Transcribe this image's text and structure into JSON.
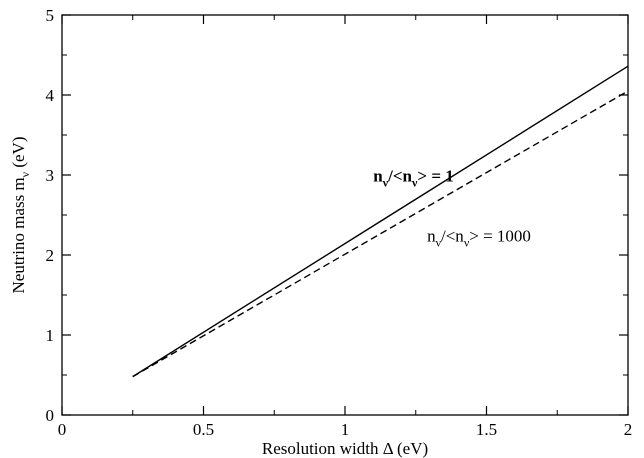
{
  "chart_data": {
    "type": "line",
    "xlabel": "Resolution width Δ (eV)",
    "ylabel": {
      "main": "Neutrino mass m",
      "sub": "ν",
      "unit": " (eV)"
    },
    "xlim": [
      0,
      2
    ],
    "ylim": [
      0,
      5
    ],
    "x_ticks": [
      "0",
      "0.5",
      "1",
      "1.5",
      "2"
    ],
    "y_ticks": [
      "0",
      "1",
      "2",
      "3",
      "4",
      "5"
    ],
    "x_tick_values": [
      0,
      0.5,
      1,
      1.5,
      2
    ],
    "y_tick_values": [
      0,
      1,
      2,
      3,
      4,
      5
    ],
    "x_minor_step": 0.25,
    "y_minor_step": 0.5,
    "grid": false,
    "series": [
      {
        "style": "solid",
        "x": [
          0.25,
          2.0
        ],
        "values": [
          0.48,
          4.36
        ]
      },
      {
        "style": "dashed",
        "x": [
          0.25,
          2.0
        ],
        "values": [
          0.48,
          4.05
        ]
      }
    ],
    "annotations": [
      {
        "style": "bold",
        "at": [
          1.1,
          2.92
        ],
        "parts": [
          {
            "t": "n",
            "s": "normal"
          },
          {
            "t": "ν",
            "s": "sub"
          },
          {
            "t": "/<n",
            "s": "normal"
          },
          {
            "t": "ν",
            "s": "sub"
          },
          {
            "t": "> = 1",
            "s": "normal"
          }
        ]
      },
      {
        "style": "normal",
        "at": [
          1.29,
          2.17
        ],
        "parts": [
          {
            "t": "n",
            "s": "normal"
          },
          {
            "t": "ν",
            "s": "sub"
          },
          {
            "t": "/<n",
            "s": "normal"
          },
          {
            "t": "ν",
            "s": "sub"
          },
          {
            "t": "> = 1000",
            "s": "normal"
          }
        ]
      }
    ]
  }
}
